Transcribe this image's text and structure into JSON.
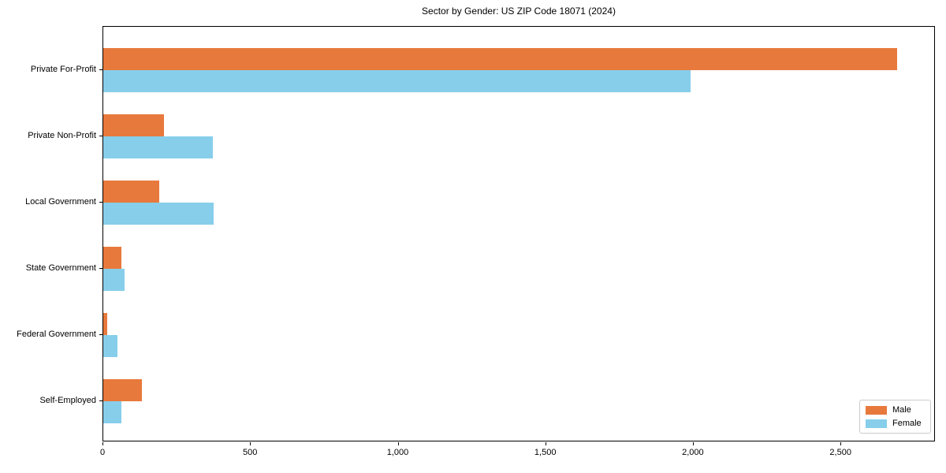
{
  "chart_data": {
    "type": "bar",
    "orientation": "horizontal",
    "title": "Sector by Gender: US ZIP Code 18071 (2024)",
    "categories": [
      "Private For-Profit",
      "Private Non-Profit",
      "Local Government",
      "State Government",
      "Federal Government",
      "Self-Employed"
    ],
    "series": [
      {
        "name": "Male",
        "color": "#E8793C",
        "values": [
          2690,
          205,
          190,
          60,
          13,
          130
        ]
      },
      {
        "name": "Female",
        "color": "#87CEEB",
        "values": [
          1990,
          370,
          375,
          72,
          47,
          60
        ]
      }
    ],
    "xlabel": "",
    "ylabel": "",
    "xlim": [
      0,
      2820
    ],
    "xticks": [
      0,
      500,
      1000,
      1500,
      2000,
      2500
    ],
    "xtick_labels": [
      "0",
      "500",
      "1,000",
      "1,500",
      "2,000",
      "2,500"
    ],
    "grid": false,
    "legend": {
      "position": "lower right"
    },
    "colors": {
      "background": "#ffffff",
      "spine": "#000000",
      "legend_border": "#cccccc"
    }
  }
}
